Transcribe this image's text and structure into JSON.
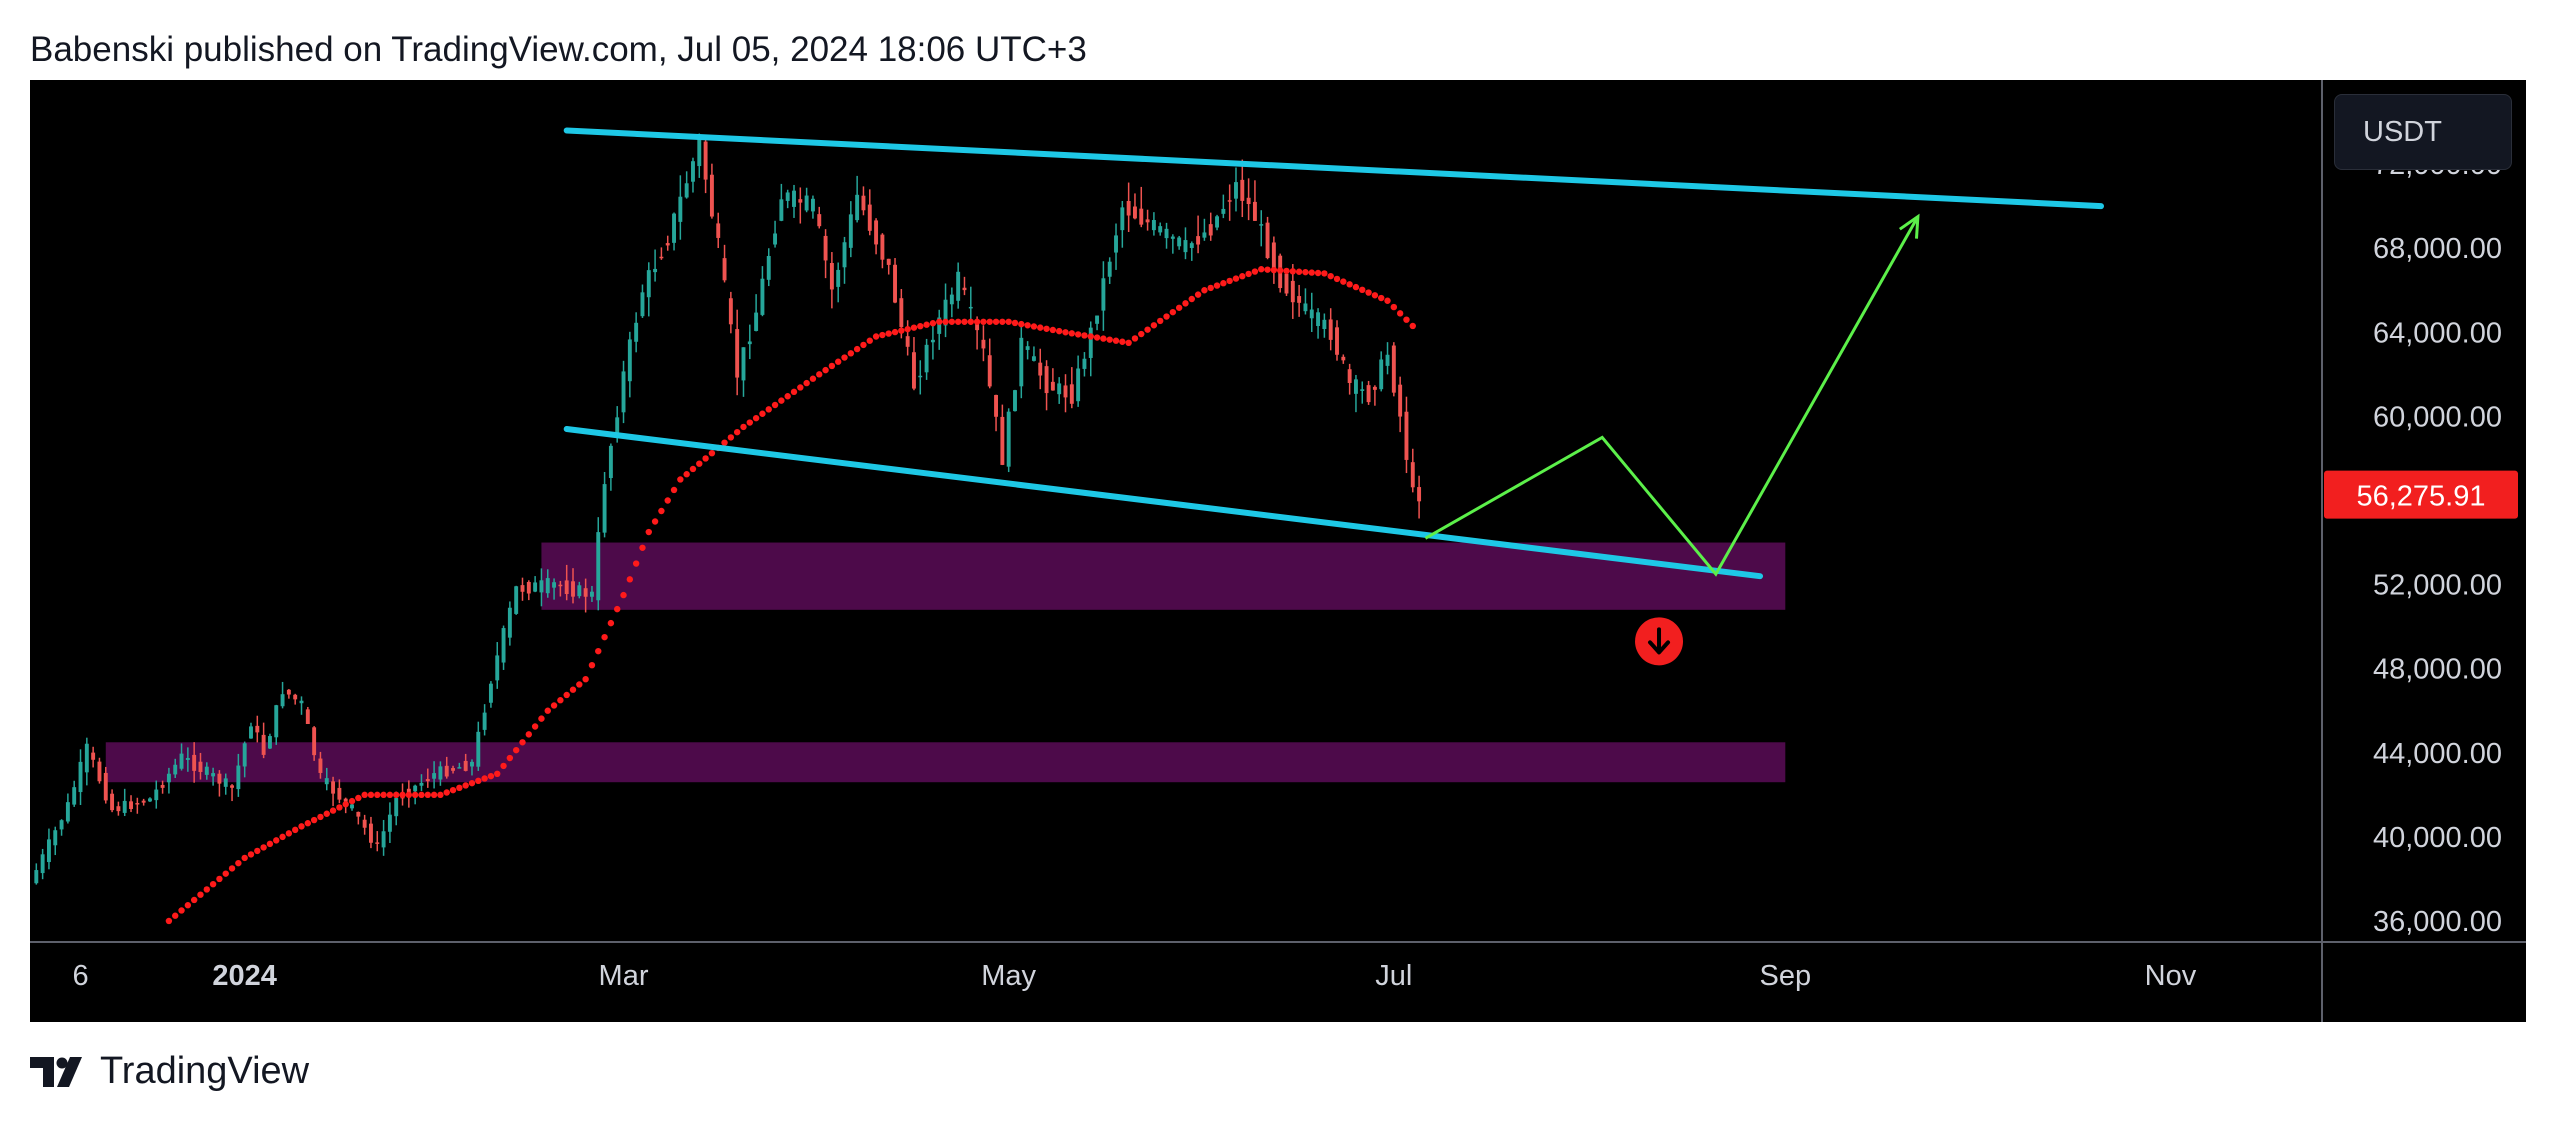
{
  "header": {
    "text": "Babenski published on TradingView.com, Jul 05, 2024 18:06 UTC+3"
  },
  "currency_button": {
    "label": "USDT"
  },
  "branding": {
    "name": "TradingView"
  },
  "colors": {
    "background": "#000000",
    "candle_up": "#26a69a",
    "candle_down": "#ef5350",
    "moving_average": "#ff1a1a",
    "channel": "#1ec8e6",
    "projection": "#5cf04a",
    "zone": "#4d0a4a",
    "price_label_bg": "#f21f1f",
    "signal_icon": "#f21f1f"
  },
  "chart_data": {
    "type": "candlestick",
    "symbol_quote": "USDT",
    "current_price_label": "56,275.91",
    "current_price": 56275.91,
    "y_ticks": [
      "72,000.00",
      "68,000.00",
      "64,000.00",
      "60,000.00",
      "52,000.00",
      "48,000.00",
      "44,000.00",
      "40,000.00",
      "36,000.00"
    ],
    "y_tick_values": [
      72000,
      68000,
      64000,
      60000,
      52000,
      48000,
      44000,
      40000,
      36000
    ],
    "x_ticks": [
      {
        "label": "6",
        "date": "2023-12-06",
        "bold": false
      },
      {
        "label": "2024",
        "date": "2024-01-01",
        "bold": true
      },
      {
        "label": "Mar",
        "date": "2024-03-01",
        "bold": false
      },
      {
        "label": "May",
        "date": "2024-05-01",
        "bold": false
      },
      {
        "label": "Jul",
        "date": "2024-07-01",
        "bold": false
      },
      {
        "label": "Sep",
        "date": "2024-09-01",
        "bold": false
      },
      {
        "label": "Nov",
        "date": "2024-11-01",
        "bold": false
      }
    ],
    "x_range": [
      "2023-11-28",
      "2024-11-25"
    ],
    "y_range": [
      35000,
      76000
    ],
    "price_path": [
      [
        "2023-11-29",
        37800
      ],
      [
        "2023-12-05",
        41500
      ],
      [
        "2023-12-08",
        44200
      ],
      [
        "2023-12-12",
        41300
      ],
      [
        "2023-12-18",
        41800
      ],
      [
        "2023-12-23",
        43800
      ],
      [
        "2023-12-31",
        42300
      ],
      [
        "2024-01-03",
        45500
      ],
      [
        "2024-01-05",
        44000
      ],
      [
        "2024-01-08",
        47000
      ],
      [
        "2024-01-11",
        46300
      ],
      [
        "2024-01-14",
        42800
      ],
      [
        "2024-01-19",
        41300
      ],
      [
        "2024-01-23",
        39500
      ],
      [
        "2024-01-26",
        41800
      ],
      [
        "2024-02-01",
        43000
      ],
      [
        "2024-02-07",
        43500
      ],
      [
        "2024-02-10",
        47500
      ],
      [
        "2024-02-14",
        51800
      ],
      [
        "2024-02-20",
        52000
      ],
      [
        "2024-02-26",
        51500
      ],
      [
        "2024-02-28",
        57000
      ],
      [
        "2024-03-02",
        62000
      ],
      [
        "2024-03-05",
        66000
      ],
      [
        "2024-03-09",
        68500
      ],
      [
        "2024-03-14",
        73000
      ],
      [
        "2024-03-17",
        68000
      ],
      [
        "2024-03-20",
        62000
      ],
      [
        "2024-03-23",
        65000
      ],
      [
        "2024-03-27",
        70500
      ],
      [
        "2024-04-01",
        70000
      ],
      [
        "2024-04-04",
        66000
      ],
      [
        "2024-04-08",
        70500
      ],
      [
        "2024-04-13",
        67000
      ],
      [
        "2024-04-17",
        61500
      ],
      [
        "2024-04-20",
        64000
      ],
      [
        "2024-04-24",
        66500
      ],
      [
        "2024-04-28",
        63000
      ],
      [
        "2024-05-01",
        58000
      ],
      [
        "2024-05-04",
        63500
      ],
      [
        "2024-05-08",
        61500
      ],
      [
        "2024-05-12",
        61000
      ],
      [
        "2024-05-15",
        64000
      ],
      [
        "2024-05-20",
        70000
      ],
      [
        "2024-05-25",
        69000
      ],
      [
        "2024-05-30",
        68000
      ],
      [
        "2024-06-03",
        69000
      ],
      [
        "2024-06-07",
        71000
      ],
      [
        "2024-06-10",
        69500
      ],
      [
        "2024-06-14",
        66500
      ],
      [
        "2024-06-18",
        65000
      ],
      [
        "2024-06-22",
        64000
      ],
      [
        "2024-06-25",
        61500
      ],
      [
        "2024-06-28",
        61000
      ],
      [
        "2024-07-01",
        63000
      ],
      [
        "2024-07-03",
        60000
      ],
      [
        "2024-07-05",
        56300
      ]
    ],
    "moving_average": [
      [
        "2023-12-20",
        36000
      ],
      [
        "2024-01-01",
        39000
      ],
      [
        "2024-01-10",
        40500
      ],
      [
        "2024-01-20",
        42000
      ],
      [
        "2024-02-01",
        42000
      ],
      [
        "2024-02-10",
        43000
      ],
      [
        "2024-02-18",
        46000
      ],
      [
        "2024-02-24",
        47500
      ],
      [
        "2024-03-01",
        51500
      ],
      [
        "2024-03-05",
        54500
      ],
      [
        "2024-03-10",
        57000
      ],
      [
        "2024-03-20",
        59500
      ],
      [
        "2024-04-01",
        62000
      ],
      [
        "2024-04-10",
        63800
      ],
      [
        "2024-04-20",
        64500
      ],
      [
        "2024-05-01",
        64500
      ],
      [
        "2024-05-10",
        64000
      ],
      [
        "2024-05-20",
        63500
      ],
      [
        "2024-06-01",
        66000
      ],
      [
        "2024-06-10",
        67000
      ],
      [
        "2024-06-20",
        66800
      ],
      [
        "2024-06-30",
        65500
      ],
      [
        "2024-07-05",
        64000
      ]
    ],
    "channel_upper": [
      [
        "2024-02-21",
        73600
      ],
      [
        "2024-10-21",
        70000
      ]
    ],
    "channel_lower": [
      [
        "2024-02-21",
        59400
      ],
      [
        "2024-08-28",
        52400
      ]
    ],
    "projection_path": [
      [
        "2024-07-06",
        54200
      ],
      [
        "2024-08-03",
        59000
      ],
      [
        "2024-08-21",
        52500
      ],
      [
        "2024-09-22",
        69500
      ]
    ],
    "support_zones": [
      {
        "from": "2024-02-17",
        "to": "2024-09-01",
        "low": 50800,
        "high": 54000
      },
      {
        "from": "2023-12-10",
        "to": "2024-09-01",
        "low": 42600,
        "high": 44500
      }
    ],
    "sell_signal": {
      "date": "2024-08-12",
      "price": 49300
    }
  }
}
